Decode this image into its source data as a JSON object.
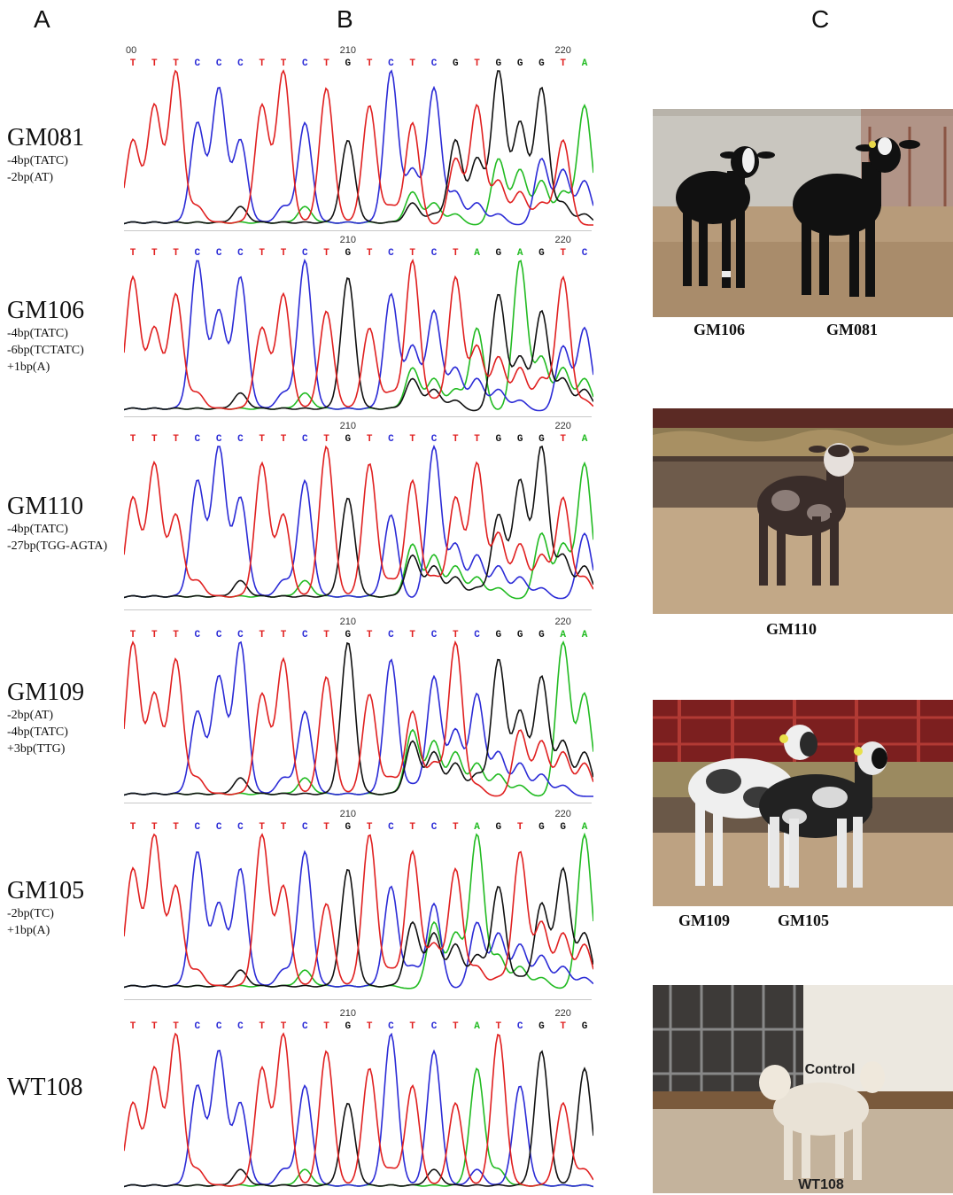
{
  "panels": {
    "a": "A",
    "b": "B",
    "c": "C"
  },
  "samples": [
    {
      "name": "GM081",
      "mutations": [
        "-4bp(TATC)",
        "-2bp(AT)"
      ]
    },
    {
      "name": "GM106",
      "mutations": [
        "-4bp(TATC)",
        "-6bp(TCTATC)",
        "+1bp(A)"
      ]
    },
    {
      "name": "GM110",
      "mutations": [
        "-4bp(TATC)",
        "-27bp(TGG-AGTA)"
      ]
    },
    {
      "name": "GM109",
      "mutations": [
        "-2bp(AT)",
        "-4bp(TATC)",
        "+3bp(TTG)"
      ]
    },
    {
      "name": "GM105",
      "mutations": [
        "-2bp(TC)",
        "+1bp(A)"
      ]
    },
    {
      "name": "WT108",
      "mutations": []
    }
  ],
  "chromatograms": [
    {
      "pos_a": "00",
      "pos_b": "210",
      "pos_c": "220",
      "bases": "TTTCCCTTCTGTCTCGTGGGTA"
    },
    {
      "pos_a": "",
      "pos_b": "210",
      "pos_c": "220",
      "bases": "TTTCCCTTCTGTCTCTAGAGTC"
    },
    {
      "pos_a": "",
      "pos_b": "210",
      "pos_c": "220",
      "bases": "TTTCCCTTCTGTCTCTTGGGTA"
    },
    {
      "pos_a": "",
      "pos_b": "210",
      "pos_c": "220",
      "bases": "TTTCCCTTCTGTCTCTCGGGAA"
    },
    {
      "pos_a": "",
      "pos_b": "210",
      "pos_c": "220",
      "bases": "TTTCCCTTCTGTCTCTAGTGGA"
    },
    {
      "pos_a": "",
      "pos_b": "210",
      "pos_c": "220",
      "bases": "TTTCCCTTCTGTCTCTATCGTG"
    }
  ],
  "base_colors": {
    "A": "#22bb22",
    "C": "#2b2bd6",
    "G": "#111111",
    "T": "#e02020"
  },
  "photos": {
    "p1_labels": [
      "GM106",
      "GM081"
    ],
    "p2_labels": [
      "GM110"
    ],
    "p3_labels": [
      "GM109",
      "GM105"
    ],
    "p4_overlay_top": "Control",
    "p4_overlay_bottom": "WT108"
  }
}
